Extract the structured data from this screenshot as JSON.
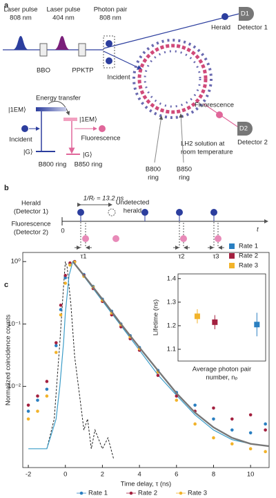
{
  "panel_a": {
    "label": "a",
    "pulse_808": [
      "Laser pulse",
      "808 nm"
    ],
    "pulse_404": [
      "Laser pulse",
      "404 nm"
    ],
    "photon_pair": [
      "Photon pair",
      "808 nm"
    ],
    "bbo": "BBO",
    "ppktp": "PPKTP",
    "herald": "Herald",
    "d1": "D1",
    "detector_1": "Detector 1",
    "incident": "Incident",
    "fluorescence": "Fluorescence",
    "d2": "D2",
    "detector_2": "Detector 2",
    "lh2": [
      "LH2 solution at",
      "room temperature"
    ],
    "b800_arrow": [
      "B800",
      "ring"
    ],
    "b850_arrow": [
      "B850",
      "ring"
    ],
    "energy_diagram": {
      "energy_transfer": "Energy transfer",
      "excited_b800": "|1EM⟩",
      "excited_b850": "|1EM⟩",
      "ground_b800": "|G⟩",
      "ground_b850": "|G⟩",
      "incident": "Incident",
      "fluorescence": "Fluorescence",
      "b800_ring": "B800 ring",
      "b850_ring": "B850 ring"
    }
  },
  "panel_b": {
    "label": "b",
    "herald": [
      "Herald",
      "(Detector 1)"
    ],
    "fluorescence": [
      "Fluorescence",
      "(Detector 2)"
    ],
    "period": "1/Rᵣ = 13.2 ns",
    "undetected": [
      "Undetected",
      "herald"
    ],
    "origin": "0",
    "time_axis": "t",
    "delays": [
      "τ1",
      "τ2",
      "τ3"
    ]
  },
  "panel_c_label": "c",
  "chart_data": [
    {
      "type": "scatter",
      "y_label": "Normalized coincidence counts",
      "x_label": "Time delay, τ (ns)",
      "xlim": [
        -2.3,
        11
      ],
      "xticks": [
        -2,
        0,
        2,
        4,
        6,
        8,
        10
      ],
      "ylim": [
        0.0005,
        1.4
      ],
      "yscale": "log",
      "yticks": [
        {
          "value": 0.01,
          "label": "10⁻²"
        },
        {
          "value": 0.1,
          "label": "10⁻¹"
        },
        {
          "value": 1,
          "label": "10⁰"
        }
      ],
      "legend": "bottom",
      "series": [
        {
          "name": "Rate 1",
          "color": "#2a7fc1",
          "x": [
            -2,
            -1.5,
            -1,
            -0.5,
            -0.25,
            0,
            0.25,
            0.5,
            1,
            1.5,
            2,
            2.5,
            3,
            3.5,
            4,
            5,
            6,
            7,
            8,
            9,
            10,
            10.8
          ],
          "values": [
            0.004,
            0.006,
            0.009,
            0.045,
            0.17,
            0.55,
            0.92,
            1.0,
            0.62,
            0.4,
            0.25,
            0.16,
            0.1,
            0.065,
            0.042,
            0.018,
            0.008,
            0.005,
            0.003,
            0.002,
            0.0018,
            0.0025
          ]
        },
        {
          "name": "Rate 2",
          "color": "#a3203f",
          "x": [
            -2,
            -1.5,
            -1,
            -0.5,
            -0.25,
            0,
            0.25,
            0.5,
            1,
            1.5,
            2,
            2.5,
            3,
            3.5,
            4,
            5,
            6,
            7,
            8,
            9,
            10,
            10.8
          ],
          "values": [
            0.005,
            0.007,
            0.012,
            0.05,
            0.2,
            0.6,
            0.95,
            1.0,
            0.6,
            0.37,
            0.23,
            0.14,
            0.09,
            0.058,
            0.038,
            0.015,
            0.007,
            0.004,
            0.0045,
            0.003,
            0.0035,
            0.002
          ]
        },
        {
          "name": "Rate 3",
          "color": "#f2b32a",
          "x": [
            -2,
            -1.5,
            -1,
            -0.5,
            -0.25,
            0,
            0.25,
            0.5,
            1,
            1.5,
            2,
            2.5,
            3,
            3.5,
            4,
            5,
            6,
            7,
            8,
            9,
            10,
            10.8
          ],
          "values": [
            0.003,
            0.004,
            0.007,
            0.035,
            0.14,
            0.45,
            0.88,
            0.98,
            0.58,
            0.39,
            0.24,
            0.15,
            0.097,
            0.062,
            0.04,
            0.017,
            0.006,
            0.0025,
            0.0015,
            0.0012,
            0.001,
            0.0009
          ]
        }
      ],
      "lines": [
        {
          "color": "#222222",
          "style": "dashed",
          "x": [
            -1,
            -0.6,
            -0.3,
            -0.1,
            0,
            0.1,
            0.3,
            0.5,
            0.8,
            1,
            1.2,
            1.4,
            1.6,
            2,
            2.3,
            2.6
          ],
          "values": [
            0.001,
            0.003,
            0.05,
            0.4,
            1,
            0.8,
            0.2,
            0.03,
            0.006,
            0.002,
            0.003,
            0.001,
            0.002,
            0.001,
            0.0015,
            0.0007
          ]
        },
        {
          "color": "#3a9cc8",
          "style": "solid",
          "x": [
            -2,
            -1,
            -0.5,
            -0.3,
            -0.1,
            0,
            0.2,
            0.4,
            1,
            2,
            3,
            4,
            5,
            6,
            7,
            8,
            9,
            10,
            11
          ],
          "values": [
            0.001,
            0.001,
            0.003,
            0.01,
            0.05,
            0.15,
            0.6,
            1,
            0.58,
            0.234,
            0.094,
            0.038,
            0.0153,
            0.0072,
            0.0035,
            0.002,
            0.0014,
            0.0012,
            0.0011
          ]
        },
        {
          "color": "#777777",
          "style": "thick",
          "x": [
            0.4,
            1,
            2,
            3,
            4,
            5,
            6,
            7,
            8,
            9,
            10,
            11
          ],
          "values": [
            1,
            0.6,
            0.25,
            0.1,
            0.042,
            0.018,
            0.0078,
            0.0038,
            0.0022,
            0.0015,
            0.0012,
            0.0011
          ]
        }
      ]
    },
    {
      "type": "errorbar",
      "y_label": "Lifetime (ns)",
      "x_label": [
        "Average photon pair",
        "number, nₚ"
      ],
      "xlim": [
        0,
        0.05
      ],
      "ylim": [
        1.05,
        1.42
      ],
      "yticks": [
        1.1,
        1.2,
        1.3,
        1.4
      ],
      "legend": "upper right",
      "series": [
        {
          "name": "Rate 1",
          "color": "#2a7fc1",
          "x": [
            0.045
          ],
          "values": [
            1.205
          ],
          "errors": [
            0.05
          ]
        },
        {
          "name": "Rate 2",
          "color": "#a3203f",
          "x": [
            0.021
          ],
          "values": [
            1.215
          ],
          "errors": [
            0.03
          ]
        },
        {
          "name": "Rate 3",
          "color": "#f2b32a",
          "x": [
            0.011
          ],
          "values": [
            1.24
          ],
          "errors": [
            0.03
          ]
        }
      ]
    }
  ]
}
